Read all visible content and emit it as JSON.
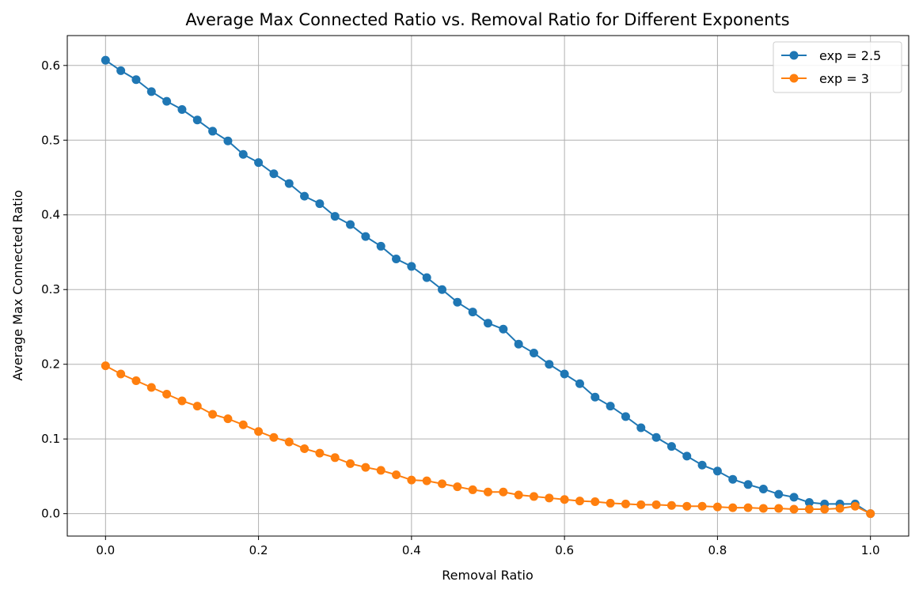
{
  "chart_data": {
    "type": "line",
    "title": "Average Max Connected Ratio vs. Removal Ratio for Different Exponents",
    "xlabel": "Removal Ratio",
    "ylabel": "Average Max Connected Ratio",
    "xlim": [
      -0.05,
      1.05
    ],
    "ylim": [
      -0.03,
      0.64
    ],
    "xticks": [
      0.0,
      0.2,
      0.4,
      0.6,
      0.8,
      1.0
    ],
    "xtick_labels": [
      "0.0",
      "0.2",
      "0.4",
      "0.6",
      "0.8",
      "1.0"
    ],
    "yticks": [
      0.0,
      0.1,
      0.2,
      0.3,
      0.4,
      0.5,
      0.6
    ],
    "ytick_labels": [
      "0.0",
      "0.1",
      "0.2",
      "0.3",
      "0.4",
      "0.5",
      "0.6"
    ],
    "grid": true,
    "legend_position": "top-right",
    "x": [
      0.0,
      0.02,
      0.04,
      0.06,
      0.08,
      0.1,
      0.12,
      0.14,
      0.16,
      0.18,
      0.2,
      0.22,
      0.24,
      0.26,
      0.28,
      0.3,
      0.32,
      0.34,
      0.36,
      0.38,
      0.4,
      0.42,
      0.44,
      0.46,
      0.48,
      0.5,
      0.52,
      0.54,
      0.56,
      0.58,
      0.6,
      0.62,
      0.64,
      0.66,
      0.68,
      0.7,
      0.72,
      0.74,
      0.76,
      0.78,
      0.8,
      0.82,
      0.84,
      0.86,
      0.88,
      0.9,
      0.92,
      0.94,
      0.96,
      0.98,
      1.0
    ],
    "series": [
      {
        "name": "exp = 2.5",
        "color": "#1f77b4",
        "values": [
          0.607,
          0.593,
          0.581,
          0.565,
          0.552,
          0.541,
          0.527,
          0.512,
          0.499,
          0.481,
          0.47,
          0.455,
          0.442,
          0.425,
          0.415,
          0.398,
          0.387,
          0.371,
          0.358,
          0.341,
          0.331,
          0.316,
          0.3,
          0.283,
          0.27,
          0.255,
          0.247,
          0.227,
          0.215,
          0.2,
          0.187,
          0.174,
          0.156,
          0.144,
          0.13,
          0.115,
          0.102,
          0.09,
          0.077,
          0.065,
          0.057,
          0.046,
          0.039,
          0.033,
          0.026,
          0.022,
          0.015,
          0.013,
          0.013,
          0.013,
          0.0
        ]
      },
      {
        "name": "exp = 3",
        "color": "#ff7f0e",
        "values": [
          0.198,
          0.187,
          0.178,
          0.169,
          0.16,
          0.151,
          0.144,
          0.133,
          0.127,
          0.119,
          0.11,
          0.102,
          0.096,
          0.087,
          0.081,
          0.075,
          0.067,
          0.062,
          0.058,
          0.052,
          0.045,
          0.044,
          0.04,
          0.036,
          0.032,
          0.029,
          0.029,
          0.025,
          0.023,
          0.021,
          0.019,
          0.017,
          0.016,
          0.014,
          0.013,
          0.012,
          0.012,
          0.011,
          0.01,
          0.01,
          0.009,
          0.008,
          0.008,
          0.007,
          0.007,
          0.006,
          0.006,
          0.006,
          0.007,
          0.01,
          0.0
        ]
      }
    ]
  }
}
